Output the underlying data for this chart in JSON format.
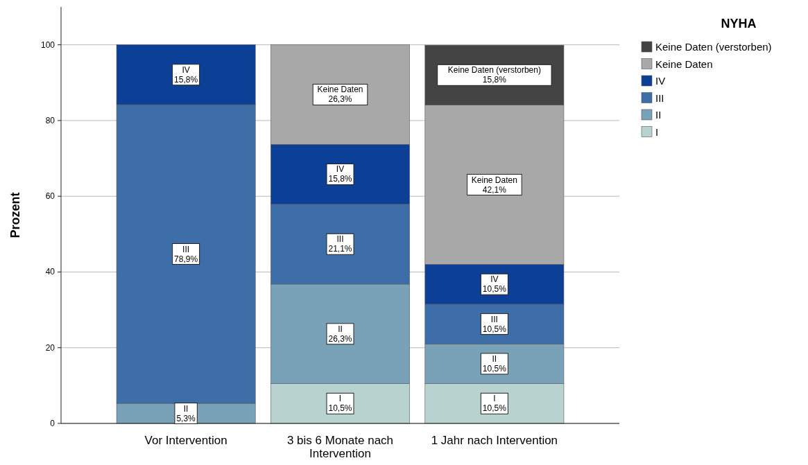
{
  "chart_data": {
    "type": "bar",
    "stacked": true,
    "ylabel": "Prozent",
    "legend_title": "NYHA",
    "legend": "top right",
    "grid": "y",
    "ylim": [
      0,
      110
    ],
    "yticks": [
      0,
      20,
      40,
      60,
      80,
      100
    ],
    "categories": [
      "Vor Intervention",
      "3 bis 6 Monate nach Intervention",
      "1 Jahr nach Intervention"
    ],
    "series": [
      {
        "name": "I",
        "color": "#b8d3cf",
        "values": [
          null,
          10.5,
          10.5
        ],
        "value_labels": [
          null,
          "10,5%",
          "10,5%"
        ]
      },
      {
        "name": "II",
        "color": "#79a1b8",
        "values": [
          5.3,
          26.3,
          10.5
        ],
        "value_labels": [
          "5,3%",
          "26,3%",
          "10,5%"
        ]
      },
      {
        "name": "III",
        "color": "#3d6ea8",
        "values": [
          78.9,
          21.1,
          10.5
        ],
        "value_labels": [
          "78,9%",
          "21,1%",
          "10,5%"
        ]
      },
      {
        "name": "IV",
        "color": "#0c3f96",
        "values": [
          15.8,
          15.8,
          10.5
        ],
        "value_labels": [
          "15,8%",
          "15,8%",
          "10,5%"
        ]
      },
      {
        "name": "Keine Daten",
        "color": "#a8a8a8",
        "values": [
          null,
          26.3,
          42.1
        ],
        "value_labels": [
          null,
          "26,3%",
          "42,1%"
        ]
      },
      {
        "name": "Keine Daten (verstorben)",
        "color": "#444444",
        "values": [
          null,
          null,
          15.8
        ],
        "value_labels": [
          null,
          null,
          "15,8%"
        ]
      }
    ]
  }
}
